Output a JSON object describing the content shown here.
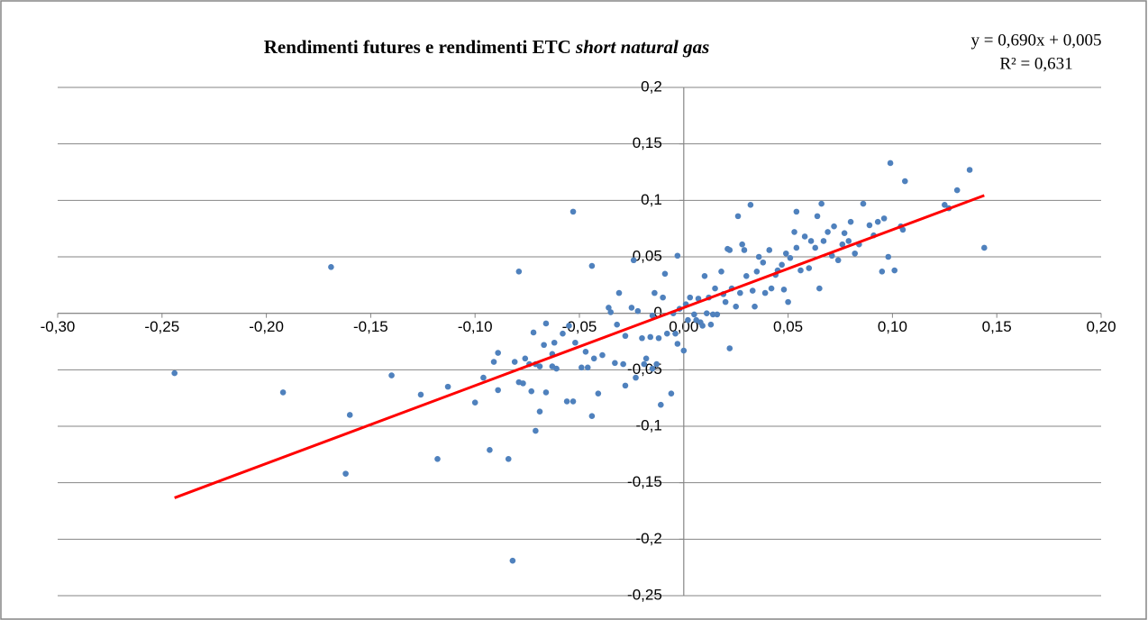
{
  "chart_data": {
    "type": "scatter",
    "title": "Rendimenti futures e rendimenti ETC",
    "title_italic": "short natural gas",
    "color": "#4f81bd",
    "x": [
      -0.244,
      -0.192,
      -0.169,
      -0.162,
      -0.16,
      -0.14,
      -0.126,
      -0.118,
      -0.113,
      -0.1,
      -0.096,
      -0.093,
      -0.091,
      -0.089,
      -0.089,
      -0.084,
      -0.082,
      -0.081,
      -0.079,
      -0.079,
      -0.077,
      -0.076,
      -0.074,
      -0.073,
      -0.072,
      -0.071,
      -0.071,
      -0.069,
      -0.069,
      -0.067,
      -0.066,
      -0.066,
      -0.063,
      -0.063,
      -0.062,
      -0.061,
      -0.058,
      -0.056,
      -0.055,
      -0.053,
      -0.053,
      -0.052,
      -0.049,
      -0.047,
      -0.046,
      -0.044,
      -0.044,
      -0.043,
      -0.041,
      -0.039,
      -0.036,
      -0.035,
      -0.033,
      -0.032,
      -0.031,
      -0.029,
      -0.028,
      -0.028,
      -0.025,
      -0.024,
      -0.023,
      -0.022,
      -0.02,
      -0.019,
      -0.018,
      -0.016,
      -0.015,
      -0.015,
      -0.014,
      -0.013,
      -0.012,
      -0.011,
      -0.01,
      -0.009,
      -0.008,
      -0.006,
      -0.005,
      -0.004,
      -0.003,
      -0.003,
      -0.002,
      0.0,
      0.001,
      0.002,
      0.003,
      0.005,
      0.006,
      0.007,
      0.008,
      0.009,
      0.01,
      0.011,
      0.012,
      0.013,
      0.014,
      0.015,
      0.016,
      0.018,
      0.019,
      0.02,
      0.021,
      0.022,
      0.022,
      0.023,
      0.025,
      0.026,
      0.027,
      0.028,
      0.029,
      0.03,
      0.032,
      0.033,
      0.034,
      0.035,
      0.036,
      0.038,
      0.039,
      0.041,
      0.042,
      0.044,
      0.045,
      0.047,
      0.048,
      0.049,
      0.05,
      0.051,
      0.053,
      0.054,
      0.054,
      0.056,
      0.058,
      0.06,
      0.061,
      0.063,
      0.064,
      0.065,
      0.066,
      0.067,
      0.069,
      0.071,
      0.072,
      0.074,
      0.076,
      0.077,
      0.079,
      0.08,
      0.082,
      0.084,
      0.086,
      0.089,
      0.091,
      0.093,
      0.095,
      0.096,
      0.098,
      0.099,
      0.101,
      0.104,
      0.105,
      0.106,
      0.125,
      0.127,
      0.131,
      0.137,
      0.144
    ],
    "values": [
      -0.053,
      -0.07,
      0.041,
      -0.142,
      -0.09,
      -0.055,
      -0.072,
      -0.129,
      -0.065,
      -0.079,
      -0.057,
      -0.121,
      -0.043,
      -0.035,
      -0.068,
      -0.129,
      -0.219,
      -0.043,
      0.037,
      -0.061,
      -0.062,
      -0.04,
      -0.045,
      -0.069,
      -0.017,
      -0.045,
      -0.104,
      -0.047,
      -0.087,
      -0.028,
      -0.009,
      -0.07,
      -0.047,
      -0.036,
      -0.026,
      -0.049,
      -0.018,
      -0.078,
      -0.011,
      -0.078,
      0.09,
      -0.026,
      -0.048,
      -0.034,
      -0.048,
      0.042,
      -0.091,
      -0.04,
      -0.071,
      -0.037,
      0.005,
      0.001,
      -0.044,
      -0.01,
      0.018,
      -0.045,
      -0.064,
      -0.02,
      0.005,
      0.047,
      -0.057,
      0.002,
      -0.022,
      -0.045,
      -0.04,
      -0.021,
      -0.002,
      -0.049,
      0.018,
      -0.045,
      -0.022,
      -0.081,
      0.014,
      0.035,
      -0.018,
      -0.071,
      0.0,
      -0.018,
      -0.027,
      0.051,
      0.004,
      -0.033,
      0.008,
      -0.006,
      0.014,
      -0.001,
      -0.006,
      0.013,
      -0.008,
      -0.011,
      0.033,
      0.0,
      0.014,
      -0.01,
      -0.001,
      0.022,
      -0.001,
      0.037,
      0.017,
      0.01,
      0.057,
      -0.031,
      0.056,
      0.022,
      0.006,
      0.086,
      0.018,
      0.061,
      0.056,
      0.033,
      0.096,
      0.02,
      0.006,
      0.037,
      0.05,
      0.045,
      0.018,
      0.056,
      0.022,
      0.034,
      0.038,
      0.043,
      0.021,
      0.053,
      0.01,
      0.049,
      0.072,
      0.058,
      0.09,
      0.038,
      0.068,
      0.04,
      0.064,
      0.058,
      0.086,
      0.022,
      0.097,
      0.064,
      0.072,
      0.051,
      0.077,
      0.047,
      0.061,
      0.071,
      0.064,
      0.081,
      0.053,
      0.061,
      0.097,
      0.078,
      0.069,
      0.081,
      0.037,
      0.084,
      0.05,
      0.133,
      0.038,
      0.077,
      0.074,
      0.117,
      0.096,
      0.093,
      0.109,
      0.127,
      0.058
    ],
    "trendline": {
      "color": "#ff0000",
      "slope": 0.69,
      "intercept": 0.005,
      "x": [
        -0.244,
        0.144
      ],
      "equation": "y = 0,690x + 0,005",
      "r2": "R² = 0,631"
    },
    "xlim": [
      -0.3,
      0.2
    ],
    "xticks": [
      {
        "value": -0.3,
        "label": "-0,30"
      },
      {
        "value": -0.25,
        "label": "-0,25"
      },
      {
        "value": -0.2,
        "label": "-0,20"
      },
      {
        "value": -0.15,
        "label": "-0,15"
      },
      {
        "value": -0.1,
        "label": "-0,10"
      },
      {
        "value": -0.05,
        "label": "-0,05"
      },
      {
        "value": 0,
        "label": "0,00"
      },
      {
        "value": 0.05,
        "label": "0,05"
      },
      {
        "value": 0.1,
        "label": "0,10"
      },
      {
        "value": 0.15,
        "label": "0,15"
      },
      {
        "value": 0.2,
        "label": "0,20"
      }
    ],
    "ylim": [
      -0.25,
      0.2
    ],
    "yticks": [
      {
        "value": -0.25,
        "label": "-0,25"
      },
      {
        "value": -0.2,
        "label": "-0,2"
      },
      {
        "value": -0.15,
        "label": "-0,15"
      },
      {
        "value": -0.1,
        "label": "-0,1"
      },
      {
        "value": -0.05,
        "label": "-0,05"
      },
      0,
      {
        "value": 0.05,
        "label": "0,05"
      },
      {
        "value": 0.1,
        "label": "0,1"
      },
      {
        "value": 0.15,
        "label": "0,15"
      },
      {
        "value": 0.2,
        "label": "0,2"
      }
    ],
    "grid": true
  }
}
